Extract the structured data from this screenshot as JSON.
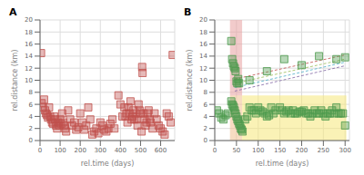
{
  "chart_data": [
    {
      "type": "scatter",
      "title": "A",
      "xlabel": "rel.time (days)",
      "ylabel": "rel.distance (km)",
      "xlim": [
        0,
        670
      ],
      "ylim": [
        0,
        20
      ],
      "xticks": [
        0,
        100,
        200,
        300,
        400,
        500,
        600
      ],
      "yticks": [
        0,
        2,
        4,
        6,
        8,
        10,
        12,
        14,
        16,
        18,
        20
      ],
      "grid": true,
      "series": [
        {
          "type": "scatter",
          "marker": "square",
          "color": "#c0504d",
          "x": [
            5,
            8,
            15,
            20,
            25,
            30,
            35,
            40,
            45,
            50,
            55,
            60,
            65,
            70,
            75,
            80,
            85,
            90,
            95,
            100,
            105,
            110,
            115,
            120,
            125,
            130,
            140,
            150,
            160,
            170,
            180,
            190,
            200,
            210,
            220,
            230,
            240,
            250,
            260,
            270,
            280,
            290,
            300,
            310,
            320,
            330,
            340,
            350,
            360,
            370,
            390,
            400,
            410,
            420,
            425,
            430,
            435,
            440,
            445,
            450,
            455,
            460,
            465,
            470,
            475,
            480,
            485,
            490,
            495,
            500,
            505,
            508,
            510,
            515,
            520,
            525,
            530,
            535,
            540,
            545,
            550,
            560,
            570,
            580,
            590,
            600,
            610,
            620,
            630,
            640,
            650,
            660
          ],
          "values": [
            14.5,
            6.2,
            5.5,
            6.8,
            5.0,
            4.5,
            4.2,
            3.8,
            5.5,
            4.0,
            3.5,
            3.0,
            2.8,
            4.0,
            3.5,
            2.5,
            2.0,
            3.0,
            2.5,
            3.5,
            2.8,
            4.5,
            3.0,
            2.5,
            2.0,
            1.5,
            5.0,
            3.5,
            2.5,
            3.0,
            1.8,
            2.2,
            4.5,
            3.0,
            1.8,
            2.5,
            5.5,
            3.5,
            1.0,
            1.5,
            2.0,
            1.2,
            3.0,
            2.5,
            1.8,
            1.5,
            2.0,
            2.8,
            3.5,
            2.0,
            7.5,
            6.0,
            4.0,
            5.5,
            4.0,
            4.5,
            3.0,
            5.5,
            4.5,
            6.5,
            3.5,
            4.0,
            5.0,
            3.5,
            4.5,
            3.5,
            2.5,
            6.0,
            5.0,
            4.5,
            1.5,
            12.2,
            11.2,
            4.5,
            3.5,
            2.5,
            3.0,
            4.5,
            5.0,
            3.5,
            3.0,
            2.0,
            4.5,
            3.5,
            2.5,
            2.0,
            1.5,
            1.0,
            4.5,
            4.0,
            3.0,
            14.2
          ]
        }
      ]
    },
    {
      "type": "scatter",
      "title": "B",
      "xlabel": "rel.time (days)",
      "ylabel": "rel.distance (km)",
      "xlim": [
        0,
        310
      ],
      "ylim": [
        0,
        20
      ],
      "xticks": [
        0,
        50,
        100,
        150,
        200,
        250,
        300
      ],
      "yticks": [
        0,
        2,
        4,
        6,
        8,
        10,
        12,
        14,
        16,
        18,
        20
      ],
      "grid": true,
      "regions": [
        {
          "x": [
            35,
            63
          ],
          "y": [
            7.5,
            20
          ],
          "color": "#e8a0a0"
        },
        {
          "x": [
            35,
            63
          ],
          "y": [
            0,
            7.5
          ],
          "color": "#f0c090"
        },
        {
          "x": [
            63,
            303
          ],
          "y": [
            0,
            7.5
          ],
          "color": "#f5e87a"
        }
      ],
      "series": [
        {
          "type": "line",
          "line_style": "dashed",
          "color": "#c0504d",
          "x": [
            46,
            300
          ],
          "values": [
            10.2,
            14.2
          ]
        },
        {
          "type": "line",
          "line_style": "dashed",
          "color": "#9bbb59",
          "x": [
            46,
            300
          ],
          "values": [
            9.5,
            13.5
          ]
        },
        {
          "type": "line",
          "line_style": "dashed",
          "color": "#4bacc6",
          "x": [
            46,
            300
          ],
          "values": [
            8.8,
            13.0
          ]
        },
        {
          "type": "line",
          "line_style": "dashed",
          "color": "#8064a2",
          "x": [
            46,
            300
          ],
          "values": [
            8.2,
            12.4
          ]
        },
        {
          "type": "scatter",
          "marker": "square",
          "color": "#4e9a4e",
          "x": [
            38,
            40,
            42,
            44,
            46,
            48,
            50,
            52,
            54,
            56,
            80,
            120,
            160,
            200,
            240,
            280,
            300
          ],
          "values": [
            16.5,
            13.5,
            12.8,
            12.3,
            12.0,
            11.5,
            9.8,
            9.5,
            10.2,
            9.5,
            10.0,
            11.5,
            13.5,
            12.5,
            14.0,
            13.5,
            13.8
          ]
        },
        {
          "type": "scatter",
          "marker": "square",
          "color": "#4e9a4e",
          "x": [
            5,
            10,
            15,
            20,
            25,
            30,
            38,
            40,
            42,
            44,
            46,
            48,
            50,
            52,
            54,
            56,
            58,
            60,
            62,
            64,
            70,
            75,
            80,
            85,
            90,
            95,
            100,
            105,
            110,
            115,
            120,
            125,
            130,
            135,
            140,
            150,
            155,
            160,
            165,
            170,
            175,
            180,
            185,
            190,
            195,
            200,
            205,
            210,
            215,
            220,
            225,
            230,
            235,
            240,
            245,
            250,
            255,
            260,
            265,
            270,
            275,
            280,
            285,
            290,
            295,
            300
          ],
          "values": [
            5.0,
            4.5,
            3.8,
            3.5,
            4.2,
            4.5,
            6.5,
            6.0,
            5.8,
            5.5,
            5.0,
            4.5,
            4.0,
            3.5,
            3.2,
            2.8,
            2.5,
            2.0,
            1.8,
            1.5,
            3.5,
            4.0,
            5.5,
            5.0,
            5.0,
            4.5,
            5.5,
            5.0,
            4.8,
            4.5,
            4.0,
            4.2,
            5.5,
            4.5,
            5.0,
            5.5,
            5.0,
            4.5,
            4.8,
            5.0,
            4.5,
            5.0,
            4.5,
            4.5,
            4.8,
            4.8,
            5.0,
            4.5,
            4.5,
            4.0,
            4.5,
            5.0,
            4.5,
            4.5,
            5.0,
            4.5,
            4.0,
            4.5,
            4.5,
            5.0,
            4.5,
            5.5,
            4.5,
            4.5,
            4.5,
            2.5
          ]
        }
      ]
    }
  ]
}
